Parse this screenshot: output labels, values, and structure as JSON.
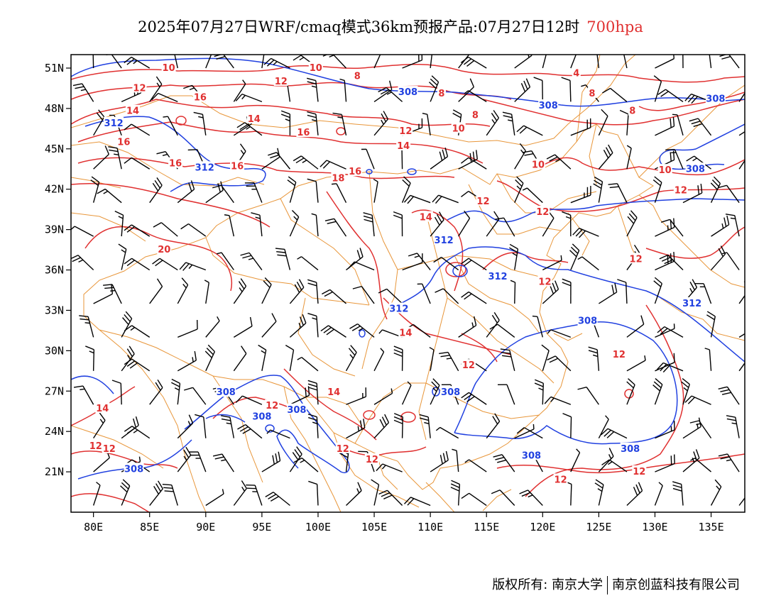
{
  "title": {
    "main": "2025年07月27日WRF/cmaq模式36km预报产品:07月27日12时",
    "level": "700hpa",
    "level_color": "#e03030"
  },
  "axes": {
    "lat_labels": [
      "51N",
      "48N",
      "45N",
      "42N",
      "39N",
      "36N",
      "33N",
      "30N",
      "27N",
      "24N",
      "21N"
    ],
    "lat_values": [
      51,
      48,
      45,
      42,
      39,
      36,
      33,
      30,
      27,
      24,
      21
    ],
    "lon_labels": [
      "80E",
      "85E",
      "90E",
      "95E",
      "100E",
      "105E",
      "110E",
      "115E",
      "120E",
      "125E",
      "130E",
      "135E"
    ],
    "lon_values": [
      80,
      85,
      90,
      95,
      100,
      105,
      110,
      115,
      120,
      125,
      130,
      135
    ],
    "lon_range": [
      78,
      138
    ],
    "lat_range": [
      18,
      52
    ]
  },
  "temperature_labels": {
    "color": "#e03030",
    "items": [
      {
        "text": "10",
        "lon": 86.7,
        "lat": 51.0
      },
      {
        "text": "10",
        "lon": 99.8,
        "lat": 51.0
      },
      {
        "text": "8",
        "lon": 103.5,
        "lat": 50.4
      },
      {
        "text": "4",
        "lon": 123.0,
        "lat": 50.6
      },
      {
        "text": "12",
        "lon": 84.1,
        "lat": 49.5
      },
      {
        "text": "16",
        "lon": 89.5,
        "lat": 48.8
      },
      {
        "text": "12",
        "lon": 96.7,
        "lat": 50.0
      },
      {
        "text": "8",
        "lon": 111.0,
        "lat": 49.1
      },
      {
        "text": "8",
        "lon": 124.4,
        "lat": 49.1
      },
      {
        "text": "14",
        "lon": 83.5,
        "lat": 47.8
      },
      {
        "text": "14",
        "lon": 94.3,
        "lat": 47.2
      },
      {
        "text": "16",
        "lon": 98.7,
        "lat": 46.2
      },
      {
        "text": "8",
        "lon": 114.0,
        "lat": 47.5
      },
      {
        "text": "8",
        "lon": 128.0,
        "lat": 47.8
      },
      {
        "text": "12",
        "lon": 107.8,
        "lat": 46.3
      },
      {
        "text": "10",
        "lon": 112.5,
        "lat": 46.5
      },
      {
        "text": "16",
        "lon": 82.7,
        "lat": 45.5
      },
      {
        "text": "14",
        "lon": 107.6,
        "lat": 45.2
      },
      {
        "text": "16",
        "lon": 87.3,
        "lat": 43.9
      },
      {
        "text": "16",
        "lon": 92.8,
        "lat": 43.7
      },
      {
        "text": "16",
        "lon": 103.3,
        "lat": 43.3
      },
      {
        "text": "18",
        "lon": 101.8,
        "lat": 42.8
      },
      {
        "text": "10",
        "lon": 119.6,
        "lat": 43.8
      },
      {
        "text": "10",
        "lon": 130.9,
        "lat": 43.4
      },
      {
        "text": "12",
        "lon": 132.3,
        "lat": 41.9
      },
      {
        "text": "12",
        "lon": 114.7,
        "lat": 41.1
      },
      {
        "text": "12",
        "lon": 120.0,
        "lat": 40.3
      },
      {
        "text": "14",
        "lon": 109.6,
        "lat": 39.9
      },
      {
        "text": "20",
        "lon": 86.3,
        "lat": 37.5
      },
      {
        "text": "12",
        "lon": 128.3,
        "lat": 36.8
      },
      {
        "text": "12",
        "lon": 120.2,
        "lat": 35.1
      },
      {
        "text": "14",
        "lon": 107.8,
        "lat": 31.3
      },
      {
        "text": "12",
        "lon": 113.4,
        "lat": 28.9
      },
      {
        "text": "12",
        "lon": 126.8,
        "lat": 29.7
      },
      {
        "text": "14",
        "lon": 101.4,
        "lat": 26.9
      },
      {
        "text": "12",
        "lon": 95.9,
        "lat": 25.9
      },
      {
        "text": "14",
        "lon": 80.8,
        "lat": 25.7
      },
      {
        "text": "12",
        "lon": 80.2,
        "lat": 22.9
      },
      {
        "text": "12",
        "lon": 81.4,
        "lat": 22.7
      },
      {
        "text": "12",
        "lon": 102.2,
        "lat": 22.7
      },
      {
        "text": "12",
        "lon": 104.8,
        "lat": 21.9
      },
      {
        "text": "12",
        "lon": 121.6,
        "lat": 20.4
      },
      {
        "text": "12",
        "lon": 128.6,
        "lat": 21.0
      }
    ]
  },
  "height_labels": {
    "color": "#2040e0",
    "items": [
      {
        "text": "308",
        "lon": 108.0,
        "lat": 49.2
      },
      {
        "text": "308",
        "lon": 120.5,
        "lat": 48.2
      },
      {
        "text": "308",
        "lon": 135.4,
        "lat": 48.7
      },
      {
        "text": "312",
        "lon": 81.8,
        "lat": 46.9
      },
      {
        "text": "312",
        "lon": 89.9,
        "lat": 43.6
      },
      {
        "text": "308",
        "lon": 133.6,
        "lat": 43.5
      },
      {
        "text": "312",
        "lon": 111.2,
        "lat": 38.2
      },
      {
        "text": "312",
        "lon": 116.0,
        "lat": 35.5
      },
      {
        "text": "312",
        "lon": 107.2,
        "lat": 33.1
      },
      {
        "text": "312",
        "lon": 133.3,
        "lat": 33.5
      },
      {
        "text": "308",
        "lon": 124.0,
        "lat": 32.2
      },
      {
        "text": "308",
        "lon": 91.8,
        "lat": 26.9
      },
      {
        "text": "308",
        "lon": 98.1,
        "lat": 25.6
      },
      {
        "text": "308",
        "lon": 95.0,
        "lat": 25.1
      },
      {
        "text": "308",
        "lon": 111.8,
        "lat": 26.9
      },
      {
        "text": "308",
        "lon": 119.0,
        "lat": 22.2
      },
      {
        "text": "308",
        "lon": 127.8,
        "lat": 22.7
      },
      {
        "text": "308",
        "lon": 83.6,
        "lat": 21.2
      }
    ]
  },
  "wind_barbs": {
    "lons": [
      80,
      82.5,
      85,
      87.5,
      90,
      92.5,
      95,
      97.5,
      100,
      102.5,
      105,
      107.5,
      110,
      112.5,
      115,
      117.5,
      120,
      122.5,
      125,
      127.5,
      130,
      132.5,
      135,
      137.5
    ],
    "lats": [
      51,
      48.5,
      46,
      43.5,
      41,
      38.5,
      36,
      33.5,
      31,
      28.5,
      26,
      23.5,
      21,
      18.5
    ]
  },
  "footer": {
    "copyright": "版权所有: 南京大学",
    "company": "南京创蓝科技有限公司"
  }
}
